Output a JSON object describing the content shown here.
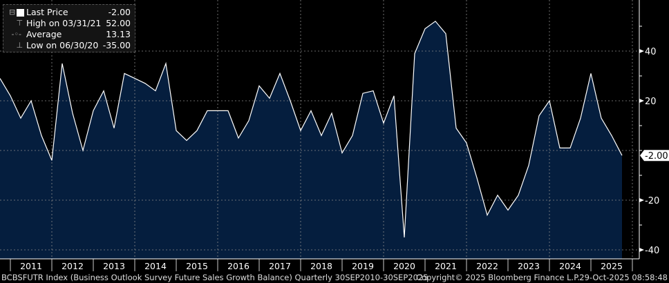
{
  "chart_data": {
    "type": "area",
    "title": "",
    "frequency": "Quarterly",
    "x_start": "30SEP2010",
    "x_end": "30SEP2025",
    "x": [
      "2010Q3",
      "2010Q4",
      "2011Q1",
      "2011Q2",
      "2011Q3",
      "2011Q4",
      "2012Q1",
      "2012Q2",
      "2012Q3",
      "2012Q4",
      "2013Q1",
      "2013Q2",
      "2013Q3",
      "2013Q4",
      "2014Q1",
      "2014Q2",
      "2014Q3",
      "2014Q4",
      "2015Q1",
      "2015Q2",
      "2015Q3",
      "2015Q4",
      "2016Q1",
      "2016Q2",
      "2016Q3",
      "2016Q4",
      "2017Q1",
      "2017Q2",
      "2017Q3",
      "2017Q4",
      "2018Q1",
      "2018Q2",
      "2018Q3",
      "2018Q4",
      "2019Q1",
      "2019Q2",
      "2019Q3",
      "2019Q4",
      "2020Q1",
      "2020Q2",
      "2020Q3",
      "2020Q4",
      "2021Q1",
      "2021Q2",
      "2021Q3",
      "2021Q4",
      "2022Q1",
      "2022Q2",
      "2022Q3",
      "2022Q4",
      "2023Q1",
      "2023Q2",
      "2023Q3",
      "2023Q4",
      "2024Q1",
      "2024Q2",
      "2024Q3",
      "2024Q4",
      "2025Q1",
      "2025Q2",
      "2025Q3"
    ],
    "values": [
      29,
      22,
      13,
      20,
      6,
      -4,
      35,
      15,
      0,
      16,
      24,
      9,
      31,
      29,
      27,
      24,
      35,
      8,
      4,
      8,
      16,
      16,
      16,
      5,
      12,
      26,
      21,
      31,
      20,
      8,
      16,
      6,
      15,
      -1,
      6,
      23,
      24,
      11,
      22,
      -35,
      39,
      49,
      52,
      47,
      9,
      3,
      -11,
      -26,
      -18,
      -24,
      -18,
      -6,
      14,
      20,
      1,
      1,
      13,
      31,
      13,
      6,
      -2
    ],
    "ylim": [
      -45,
      57
    ],
    "yticks": [
      "40",
      "20",
      "0",
      "-20",
      "-40"
    ],
    "ytick_values": [
      40,
      20,
      0,
      -20,
      -40
    ],
    "xtick_labels": [
      "2011",
      "2012",
      "2013",
      "2014",
      "2015",
      "2016",
      "2017",
      "2018",
      "2019",
      "2020",
      "2021",
      "2022",
      "2023",
      "2024",
      "2025"
    ],
    "grid": true,
    "last_value_label": "-2.00",
    "colors": {
      "fill": "#051e3e",
      "line": "#ffffff",
      "background": "#000000",
      "grid": "#8a8a8a"
    }
  },
  "legend": {
    "position": "top-left",
    "items": [
      {
        "icon": "collapse-box-icon",
        "label": "Last Price",
        "value": "-2.00"
      },
      {
        "icon": "high-marker-icon",
        "label": "High on 03/31/21",
        "value": "52.00"
      },
      {
        "icon": "average-marker-icon",
        "label": "Average",
        "value": "13.13"
      },
      {
        "icon": "low-marker-icon",
        "label": "Low on 06/30/20",
        "value": "-35.00"
      }
    ]
  },
  "footer": {
    "description": "BCBSFUTR Index (Business Outlook Survey Future Sales Growth  Balance) Quarterly 30SEP2010-30SEP2025",
    "copyright": "Copyright© 2025 Bloomberg Finance L.P.",
    "timestamp": "29-Oct-2025 08:58:48"
  }
}
